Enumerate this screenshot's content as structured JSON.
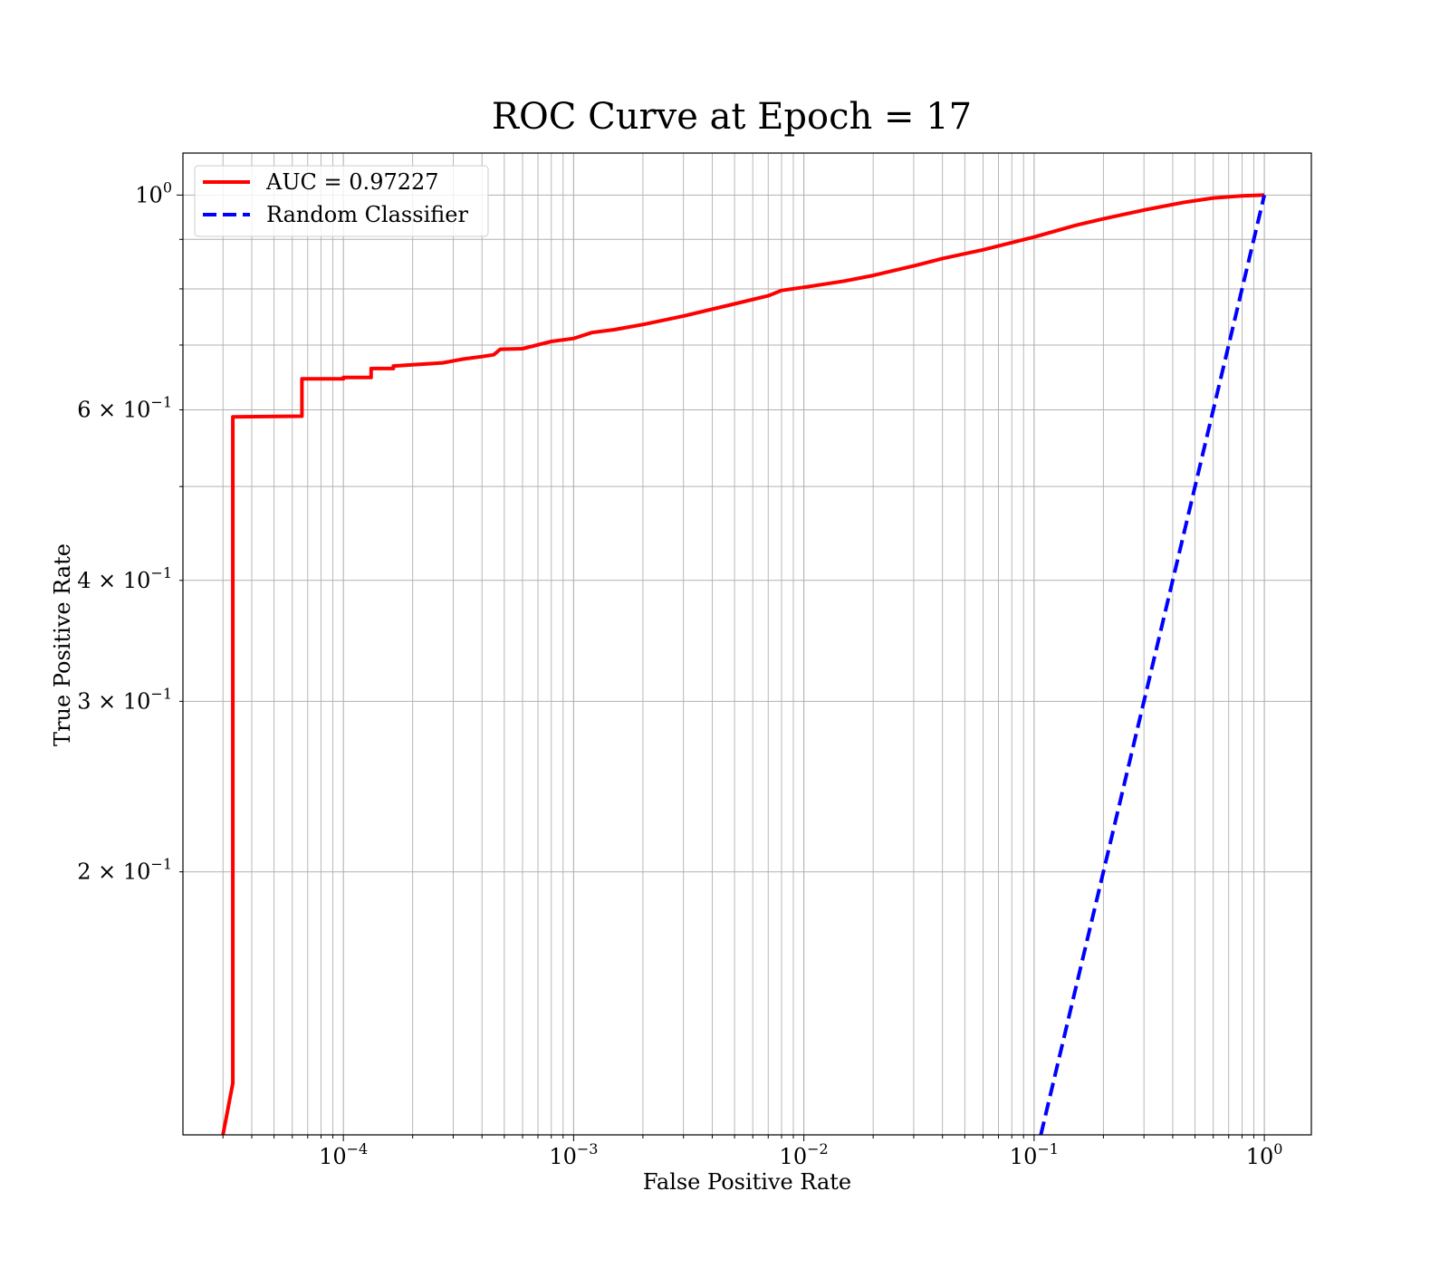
{
  "chart_data": {
    "type": "line",
    "title": "ROC Curve at Epoch = 17",
    "xlabel": "False Positive Rate",
    "ylabel": "True Positive Rate",
    "xscale": "log",
    "yscale": "log",
    "xlim": [
      2.01e-05,
      1.6
    ],
    "ylim": [
      0.107,
      1.105
    ],
    "grid": "both (major and minor)",
    "legend_position": "upper-left",
    "x_tick_labels": [
      {
        "value": 0.0001,
        "base": "10",
        "exp": "−4"
      },
      {
        "value": 0.001,
        "base": "10",
        "exp": "−3"
      },
      {
        "value": 0.01,
        "base": "10",
        "exp": "−2"
      },
      {
        "value": 0.1,
        "base": "10",
        "exp": "−1"
      },
      {
        "value": 1,
        "base": "10",
        "exp": "0"
      }
    ],
    "y_tick_labels": [
      {
        "value": 1.0,
        "mant": "",
        "base": "10",
        "exp": "0"
      },
      {
        "value": 0.6,
        "mant": "6 × ",
        "base": "10",
        "exp": "−1"
      },
      {
        "value": 0.4,
        "mant": "4 × ",
        "base": "10",
        "exp": "−1"
      },
      {
        "value": 0.3,
        "mant": "3 × ",
        "base": "10",
        "exp": "−1"
      },
      {
        "value": 0.2,
        "mant": "2 × ",
        "base": "10",
        "exp": "−1"
      }
    ],
    "series": [
      {
        "name": "AUC = 0.97227",
        "color": "#ff0000",
        "style": "solid",
        "points": [
          [
            3e-05,
            0.107
          ],
          [
            3.31e-05,
            0.121
          ],
          [
            3.31e-05,
            0.59
          ],
          [
            6.61e-05,
            0.591
          ],
          [
            6.61e-05,
            0.646
          ],
          [
            0.0001,
            0.646
          ],
          [
            0.0001,
            0.648
          ],
          [
            0.000132,
            0.648
          ],
          [
            0.000132,
            0.662
          ],
          [
            0.000165,
            0.662
          ],
          [
            0.000165,
            0.666
          ],
          [
            0.0002,
            0.668
          ],
          [
            0.00027,
            0.671
          ],
          [
            0.00033,
            0.677
          ],
          [
            0.0004,
            0.681
          ],
          [
            0.00045,
            0.684
          ],
          [
            0.00048,
            0.693
          ],
          [
            0.0006,
            0.694
          ],
          [
            0.0008,
            0.706
          ],
          [
            0.001,
            0.711
          ],
          [
            0.0012,
            0.721
          ],
          [
            0.0015,
            0.726
          ],
          [
            0.002,
            0.735
          ],
          [
            0.003,
            0.75
          ],
          [
            0.005,
            0.772
          ],
          [
            0.007,
            0.787
          ],
          [
            0.008,
            0.797
          ],
          [
            0.01,
            0.803
          ],
          [
            0.015,
            0.815
          ],
          [
            0.02,
            0.826
          ],
          [
            0.03,
            0.845
          ],
          [
            0.04,
            0.86
          ],
          [
            0.06,
            0.878
          ],
          [
            0.1,
            0.905
          ],
          [
            0.15,
            0.93
          ],
          [
            0.2,
            0.945
          ],
          [
            0.3,
            0.965
          ],
          [
            0.45,
            0.983
          ],
          [
            0.6,
            0.993
          ],
          [
            0.8,
            0.998
          ],
          [
            1.0,
            1.0
          ]
        ]
      },
      {
        "name": "Random Classifier",
        "color": "#0000ff",
        "style": "dashed",
        "points": [
          [
            0.107,
            0.107
          ],
          [
            1.0,
            1.0
          ]
        ]
      }
    ]
  }
}
